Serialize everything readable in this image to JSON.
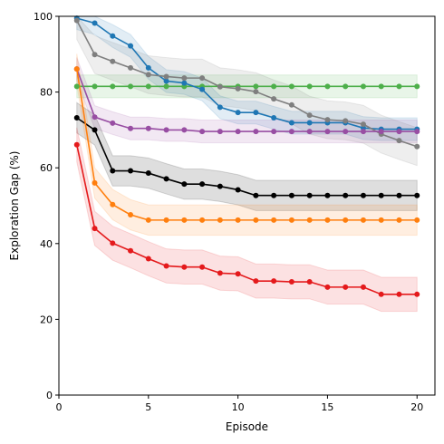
{
  "chart_data": {
    "type": "line",
    "title": "",
    "xlabel": "Episode",
    "ylabel": "Exploration Gap (%)",
    "xlim": [
      0,
      21
    ],
    "ylim": [
      0,
      100
    ],
    "xticks": [
      0,
      5,
      10,
      15,
      20
    ],
    "yticks": [
      0,
      20,
      40,
      60,
      80,
      100
    ],
    "grid": false,
    "legend": "none",
    "x": [
      1,
      2,
      3,
      4,
      5,
      6,
      7,
      8,
      9,
      10,
      11,
      12,
      13,
      14,
      15,
      16,
      17,
      18,
      19,
      20
    ],
    "series": [
      {
        "color": "#4daf4a",
        "values": [
          81.5,
          81.5,
          81.5,
          81.5,
          81.5,
          81.5,
          81.5,
          81.5,
          81.5,
          81.5,
          81.5,
          81.5,
          81.5,
          81.5,
          81.5,
          81.5,
          81.5,
          81.5,
          81.5,
          81.5
        ],
        "band": 3
      },
      {
        "color": "#1f77b4",
        "values": [
          99.5,
          98.2,
          94.8,
          92.2,
          86.4,
          82.9,
          82.4,
          80.7,
          76.0,
          74.6,
          74.6,
          73.2,
          71.9,
          71.9,
          71.9,
          71.9,
          70.5,
          70.2,
          70.2,
          70.2
        ],
        "band": 3
      },
      {
        "color": "#7f7f7f",
        "values": [
          98.9,
          89.9,
          88.1,
          86.4,
          84.6,
          84.1,
          83.7,
          83.7,
          81.4,
          80.9,
          80.1,
          78.2,
          76.6,
          73.9,
          72.7,
          72.4,
          71.5,
          68.9,
          67.2,
          65.6
        ],
        "band": 5
      },
      {
        "color": "#984ea3",
        "values": [
          86.1,
          73.4,
          71.8,
          70.4,
          70.4,
          70.0,
          70.0,
          69.6,
          69.6,
          69.6,
          69.6,
          69.6,
          69.6,
          69.6,
          69.6,
          69.6,
          69.6,
          69.6,
          69.6,
          69.6
        ],
        "band": 3
      },
      {
        "color": "#000000",
        "values": [
          73.2,
          70.0,
          59.2,
          59.2,
          58.6,
          57.1,
          55.7,
          55.7,
          55.1,
          54.2,
          52.7,
          52.7,
          52.7,
          52.7,
          52.7,
          52.7,
          52.7,
          52.7,
          52.7,
          52.7
        ],
        "band": 4
      },
      {
        "color": "#ff7f0e",
        "values": [
          86.1,
          56.0,
          50.3,
          47.6,
          46.2,
          46.2,
          46.2,
          46.2,
          46.2,
          46.2,
          46.2,
          46.2,
          46.2,
          46.2,
          46.2,
          46.2,
          46.2,
          46.2,
          46.2,
          46.2
        ],
        "band": 4
      },
      {
        "color": "#e41a1c",
        "values": [
          66.1,
          44.0,
          40.1,
          38.1,
          36.0,
          34.1,
          33.8,
          33.8,
          32.2,
          32.0,
          30.1,
          30.1,
          29.9,
          29.9,
          28.5,
          28.5,
          28.5,
          26.6,
          26.6,
          26.6
        ],
        "band": 4.5
      }
    ]
  }
}
